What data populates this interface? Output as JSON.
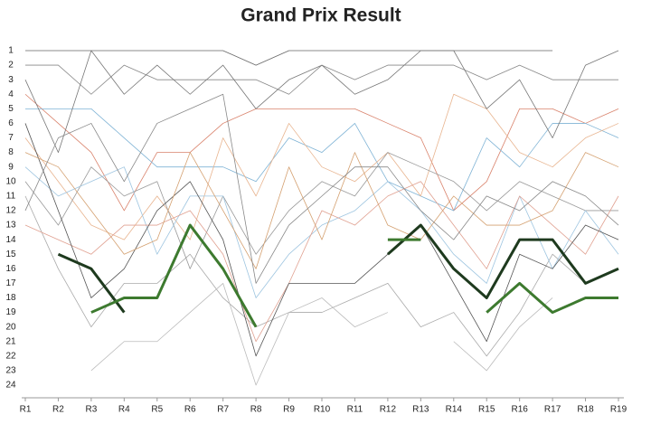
{
  "chart_data": {
    "type": "line",
    "title": "Grand Prix Result",
    "categories": [
      "R1",
      "R2",
      "R3",
      "R4",
      "R5",
      "R6",
      "R7",
      "R8",
      "R9",
      "R10",
      "R11",
      "R12",
      "R13",
      "R14",
      "R15",
      "R16",
      "R17",
      "R18",
      "R19"
    ],
    "ylim": [
      24,
      1
    ],
    "yticks": [
      1,
      2,
      3,
      4,
      5,
      6,
      7,
      8,
      9,
      10,
      11,
      12,
      13,
      14,
      15,
      16,
      17,
      18,
      19,
      20,
      21,
      22,
      23,
      24
    ],
    "series": [
      {
        "color": "#666666",
        "values": [
          1,
          1,
          1,
          1,
          1,
          1,
          1,
          2,
          1,
          1,
          1,
          1,
          1,
          1,
          1,
          1,
          1,
          null,
          null
        ]
      },
      {
        "color": "#888888",
        "values": [
          2,
          2,
          4,
          2,
          3,
          3,
          3,
          3,
          4,
          2,
          3,
          2,
          2,
          2,
          3,
          2,
          3,
          3,
          3
        ]
      },
      {
        "color": "#d9826b",
        "values": [
          4,
          6,
          8,
          12,
          8,
          8,
          6,
          5,
          5,
          5,
          5,
          6,
          7,
          12,
          10,
          5,
          5,
          6,
          5
        ]
      },
      {
        "color": "#7fb3d5",
        "values": [
          5,
          5,
          5,
          7,
          9,
          9,
          9,
          10,
          7,
          8,
          6,
          10,
          11,
          12,
          7,
          9,
          6,
          6,
          7
        ]
      },
      {
        "color": "#e8b48f",
        "values": [
          7,
          10,
          13,
          14,
          11,
          14,
          7,
          11,
          6,
          9,
          10,
          8,
          11,
          4,
          5,
          8,
          9,
          7,
          6
        ]
      },
      {
        "color": "#777777",
        "values": [
          3,
          8,
          1,
          4,
          2,
          4,
          2,
          5,
          3,
          2,
          4,
          3,
          1,
          1,
          5,
          3,
          7,
          2,
          1
        ]
      },
      {
        "color": "#aaaaaa",
        "values": [
          11,
          16,
          20,
          17,
          17,
          15,
          18,
          20,
          19,
          19,
          18,
          17,
          20,
          19,
          22,
          19,
          15,
          17,
          16
        ]
      },
      {
        "color": "#999999",
        "values": [
          10,
          13,
          9,
          11,
          10,
          16,
          11,
          15,
          12,
          10,
          11,
          8,
          9,
          10,
          12,
          10,
          11,
          12,
          12
        ]
      },
      {
        "color": "#9ec5e0",
        "values": [
          9,
          11,
          10,
          9,
          15,
          11,
          11,
          18,
          15,
          13,
          12,
          10,
          12,
          15,
          17,
          11,
          16,
          12,
          15
        ]
      },
      {
        "color": "#e0a090",
        "values": [
          13,
          14,
          15,
          13,
          13,
          12,
          15,
          21,
          17,
          12,
          13,
          11,
          10,
          13,
          16,
          11,
          13,
          15,
          11
        ]
      },
      {
        "color": "#555555",
        "values": [
          6,
          12,
          18,
          16,
          12,
          10,
          14,
          22,
          17,
          17,
          17,
          15,
          13,
          17,
          21,
          15,
          16,
          13,
          14
        ]
      },
      {
        "color": "#bbbbbb",
        "values": [
          null,
          null,
          23,
          21,
          21,
          19,
          17,
          24,
          19,
          18,
          20,
          19,
          null,
          21,
          23,
          20,
          18,
          null,
          null
        ]
      },
      {
        "color": "#d4a070",
        "values": [
          8,
          9,
          12,
          15,
          14,
          8,
          12,
          16,
          9,
          14,
          8,
          13,
          14,
          11,
          13,
          13,
          12,
          8,
          9
        ]
      },
      {
        "color": "#888888",
        "values": [
          12,
          7,
          6,
          10,
          6,
          5,
          4,
          17,
          13,
          11,
          9,
          9,
          12,
          14,
          11,
          12,
          10,
          11,
          13
        ]
      },
      {
        "color": "#1e3a1e",
        "highlight": true,
        "values": [
          null,
          15,
          16,
          19,
          null,
          null,
          null,
          null,
          null,
          null,
          null,
          15,
          13,
          16,
          18,
          14,
          14,
          17,
          16
        ]
      },
      {
        "color": "#3d7a2f",
        "highlight": true,
        "values": [
          null,
          null,
          19,
          18,
          18,
          13,
          16,
          20,
          null,
          null,
          null,
          14,
          14,
          null,
          19,
          17,
          19,
          18,
          18
        ]
      }
    ]
  }
}
